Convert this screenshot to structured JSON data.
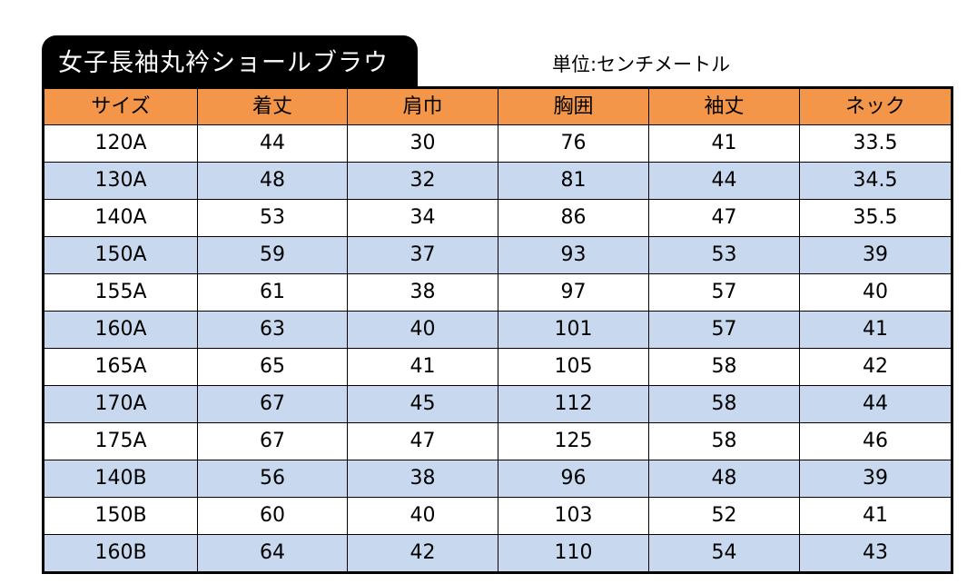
{
  "title": "女子長袖丸衿ショールブラウ",
  "unit": "単位:センチメートル",
  "table": {
    "headers": [
      "サイズ",
      "着丈",
      "肩巾",
      "胸囲",
      "袖丈",
      "ネック"
    ],
    "rows": [
      [
        "120A",
        "44",
        "30",
        "76",
        "41",
        "33.5"
      ],
      [
        "130A",
        "48",
        "32",
        "81",
        "44",
        "34.5"
      ],
      [
        "140A",
        "53",
        "34",
        "86",
        "47",
        "35.5"
      ],
      [
        "150A",
        "59",
        "37",
        "93",
        "53",
        "39"
      ],
      [
        "155A",
        "61",
        "38",
        "97",
        "57",
        "40"
      ],
      [
        "160A",
        "63",
        "40",
        "101",
        "57",
        "41"
      ],
      [
        "165A",
        "65",
        "41",
        "105",
        "58",
        "42"
      ],
      [
        "170A",
        "67",
        "45",
        "112",
        "58",
        "44"
      ],
      [
        "175A",
        "67",
        "47",
        "125",
        "58",
        "46"
      ],
      [
        "140B",
        "56",
        "38",
        "96",
        "48",
        "39"
      ],
      [
        "150B",
        "60",
        "40",
        "103",
        "52",
        "41"
      ],
      [
        "160B",
        "64",
        "42",
        "110",
        "54",
        "43"
      ]
    ]
  },
  "colors": {
    "header_bg": "#f4964a",
    "stripe_bg": "#c8d8ee",
    "title_bg": "#000000"
  }
}
